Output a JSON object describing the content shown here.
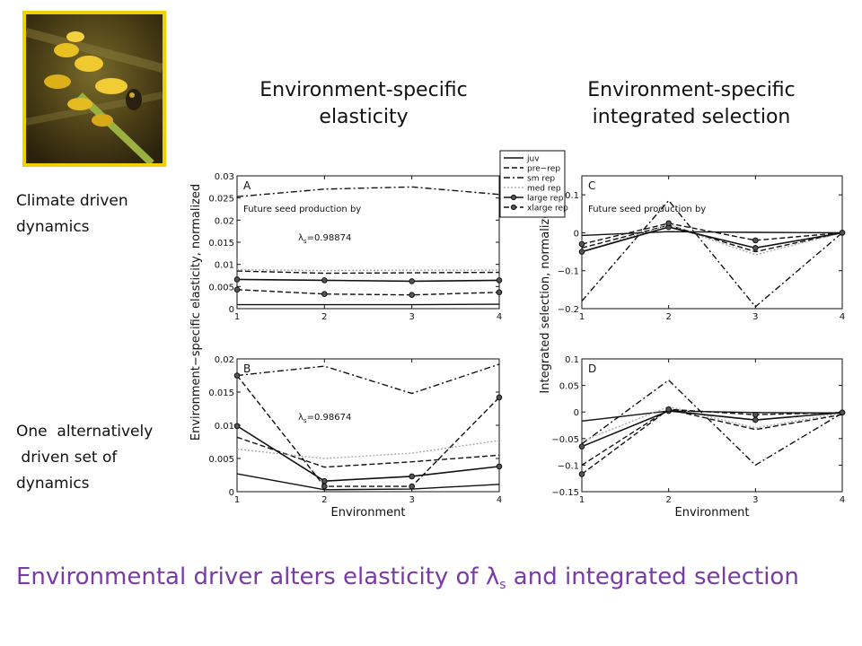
{
  "headings": {
    "elasticity": "Environment-specific\nelasticity",
    "selection": "Environment-specific\nintegrated selection"
  },
  "row_labels": {
    "climate": "Climate driven\ndynamics",
    "alternative": "One  alternatively\n driven set of\ndynamics"
  },
  "conclusion": {
    "prefix": "Environmental driver alters elasticity of ",
    "lambda": "λ",
    "subscript": "s",
    "suffix": " and integrated selection"
  },
  "photo": {
    "description_icon": "flower-photo"
  },
  "axis_labels": {
    "elasticity_ylabel": "Environment−specific elasticity, normalized",
    "selection_ylabel": "Integrated selection, normalized",
    "xlabel": "Environment"
  },
  "legend": [
    "juv",
    "pre−rep",
    "sm rep",
    "med rep",
    "large rep",
    "xlarge rep"
  ],
  "chart_data": [
    {
      "panel": "A",
      "type": "line",
      "x": [
        1,
        2,
        3,
        4
      ],
      "xlim": [
        1,
        4
      ],
      "ylim": [
        0,
        0.03
      ],
      "yticks": [
        "0",
        "0.005",
        "0.01",
        "0.015",
        "0.02",
        "0.025",
        "0.03"
      ],
      "annotation": "Future seed production by",
      "lambda_label": "=0.98874",
      "lambda_symbol": "λ",
      "lambda_sub": "s",
      "series": [
        {
          "name": "juv",
          "values": [
            0.0009,
            0.0009,
            0.0009,
            0.001
          ]
        },
        {
          "name": "pre−rep",
          "values": [
            0.0085,
            0.008,
            0.0081,
            0.0082
          ]
        },
        {
          "name": "sm rep",
          "values": [
            0.0253,
            0.027,
            0.0275,
            0.0258
          ]
        },
        {
          "name": "med rep",
          "values": [
            0.0088,
            0.0086,
            0.0087,
            0.0087
          ]
        },
        {
          "name": "large rep",
          "values": [
            0.0066,
            0.0064,
            0.0062,
            0.0064
          ]
        },
        {
          "name": "xlarge rep",
          "values": [
            0.0043,
            0.0033,
            0.0031,
            0.0037
          ]
        }
      ]
    },
    {
      "panel": "B",
      "type": "line",
      "x": [
        1,
        2,
        3,
        4
      ],
      "xlim": [
        1,
        4
      ],
      "ylim": [
        0,
        0.02
      ],
      "yticks": [
        "0",
        "0.005",
        "0.01",
        "0.015",
        "0.02"
      ],
      "lambda_label": "=0.98674",
      "lambda_symbol": "λ",
      "lambda_sub": "s",
      "series": [
        {
          "name": "juv",
          "values": [
            0.0027,
            0.0003,
            0.0004,
            0.0011
          ]
        },
        {
          "name": "pre−rep",
          "values": [
            0.0082,
            0.0037,
            0.0045,
            0.0055
          ]
        },
        {
          "name": "sm rep",
          "values": [
            0.0175,
            0.0189,
            0.0148,
            0.0192
          ]
        },
        {
          "name": "med rep",
          "values": [
            0.0064,
            0.005,
            0.0058,
            0.0077
          ]
        },
        {
          "name": "large rep",
          "values": [
            0.0099,
            0.0016,
            0.0023,
            0.0038
          ]
        },
        {
          "name": "xlarge rep",
          "values": [
            0.0175,
            0.0008,
            0.0008,
            0.0142
          ]
        }
      ]
    },
    {
      "panel": "C",
      "type": "line",
      "x": [
        1,
        2,
        3,
        4
      ],
      "xlim": [
        1,
        4
      ],
      "ylim": [
        -0.2,
        0.15
      ],
      "yticks": [
        "−0.2",
        "−0.1",
        "0",
        "0.1"
      ],
      "ytick_values": [
        -0.2,
        -0.1,
        0,
        0.1
      ],
      "annotation": "Future seed production by",
      "series": [
        {
          "name": "juv",
          "values": [
            -0.007,
            0.003,
            0.001,
            0.0
          ]
        },
        {
          "name": "pre−rep",
          "values": [
            -0.04,
            0.02,
            -0.05,
            0.0
          ]
        },
        {
          "name": "sm rep",
          "values": [
            -0.18,
            0.085,
            -0.195,
            0.0
          ]
        },
        {
          "name": "med rep",
          "values": [
            -0.05,
            0.02,
            -0.058,
            0.0
          ]
        },
        {
          "name": "large rep",
          "values": [
            -0.05,
            0.015,
            -0.04,
            0.0
          ]
        },
        {
          "name": "xlarge rep",
          "values": [
            -0.03,
            0.025,
            -0.02,
            0.0
          ]
        }
      ]
    },
    {
      "panel": "D",
      "type": "line",
      "x": [
        1,
        2,
        3,
        4
      ],
      "xlim": [
        1,
        4
      ],
      "ylim": [
        -0.15,
        0.1
      ],
      "yticks": [
        "−0.15",
        "−0.1",
        "−0.05",
        "0",
        "0.05",
        "0.1"
      ],
      "ytick_values": [
        -0.15,
        -0.1,
        -0.05,
        0,
        0.05,
        0.1
      ],
      "series": [
        {
          "name": "juv",
          "values": [
            -0.017,
            0.002,
            -0.001,
            -0.002
          ]
        },
        {
          "name": "pre−rep",
          "values": [
            -0.1,
            0.005,
            -0.033,
            -0.005
          ]
        },
        {
          "name": "sm rep",
          "values": [
            -0.06,
            0.06,
            -0.1,
            -0.002
          ]
        },
        {
          "name": "med rep",
          "values": [
            -0.055,
            0.01,
            -0.03,
            -0.002
          ]
        },
        {
          "name": "large rep",
          "values": [
            -0.065,
            0.002,
            -0.015,
            -0.001
          ]
        },
        {
          "name": "xlarge rep",
          "values": [
            -0.117,
            0.005,
            -0.005,
            -0.001
          ]
        }
      ]
    }
  ]
}
